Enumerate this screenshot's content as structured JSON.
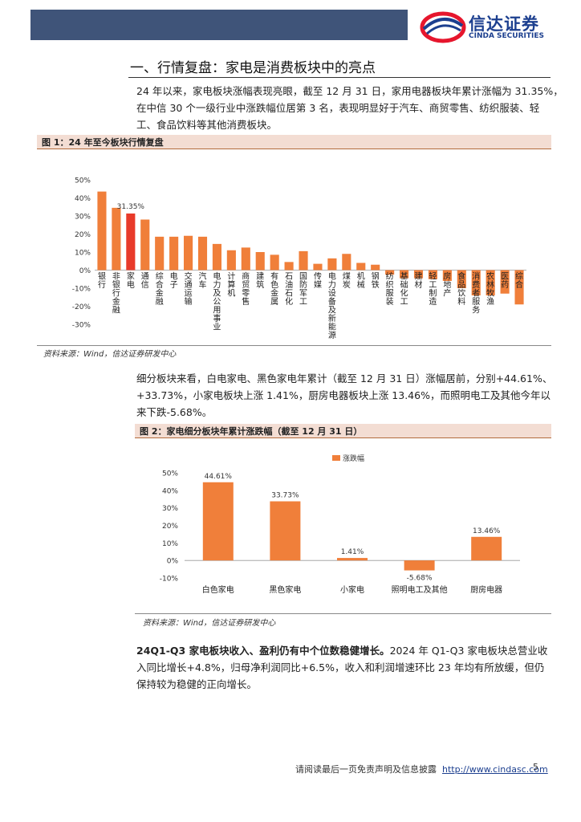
{
  "header": {
    "logo_cn": "信达证券",
    "logo_en": "CINDA SECURITIES"
  },
  "section": {
    "title": "一、行情复盘：家电是消费板块中的亮点"
  },
  "para1": [
    "24 年以来，家电板块涨幅表现亮眼，截至 12 月 31 日，家用电器板块年累计涨幅为 31.35%，",
    "在中信 30 个一级行业中涨跌幅位居第 3 名，表现明显好于汽车、商贸零售、纺织服装、轻",
    "工、食品饮料等其他消费板块。"
  ],
  "figure1": {
    "title": "图 1：24 年至今板块行情复盘",
    "source": "资料来源：Wind，信达证券研发中心"
  },
  "para2": [
    "细分板块来看，白电家电、黑色家电年累计（截至 12 月 31 日）涨幅居前，分别+44.61%、",
    "+33.73%，小家电板块上涨 1.41%，厨房电器板块上涨 13.46%，而照明电工及其他今年以",
    "来下跌-5.68%。"
  ],
  "figure2": {
    "title": "图 2：家电细分板块年累计涨跌幅（截至 12 月 31 日）",
    "source": "资料来源：Wind，信达证券研发中心"
  },
  "para3": {
    "lead": "24Q1-Q3 家电板块收入、盈利仍有中个位数稳健增长。",
    "lines": [
      "2024 年 Q1-Q3 家电板块总营业收",
      "入同比增长+4.8%，归母净利润同比+6.5%，收入和利润增速环比 23 年均有所放缓，但仍",
      "保持较为稳健的正向增长。"
    ]
  },
  "footer": {
    "text": "请阅读最后一页免责声明及信息披露",
    "link": "http://www.cindasc.com",
    "page": "5"
  },
  "colors": {
    "bar": "#f07f3a",
    "highlight": "#e83a2a",
    "header": "#3f5479",
    "fig_bar_bg": "#f3ddd3"
  },
  "chart_data": [
    {
      "type": "bar",
      "title": "",
      "categories": [
        "银行",
        "非银行金融",
        "家电",
        "通信",
        "综合金融",
        "电子",
        "交通运输",
        "汽车",
        "电力及公用事业",
        "计算机",
        "商贸零售",
        "建筑",
        "有色金属",
        "石油石化",
        "国防军工",
        "传媒",
        "电力设备及新能源",
        "煤炭",
        "机械",
        "钢铁",
        "纺织服装",
        "基础化工",
        "建材",
        "轻工制造",
        "房地产",
        "食品饮料",
        "消费者服务",
        "农林牧渔",
        "医药",
        "综合"
      ],
      "values": [
        43.5,
        34.5,
        31.35,
        28.0,
        18.5,
        18.5,
        19.0,
        18.5,
        14.5,
        11.0,
        12.5,
        10.0,
        8.5,
        4.5,
        10.5,
        3.5,
        6.5,
        9.0,
        4.0,
        3.0,
        -2.5,
        -4.5,
        -4.5,
        -5.0,
        -6.0,
        -10.0,
        -14.0,
        -14.0,
        -13.0,
        -19.0
      ],
      "highlight_index": 2,
      "data_labels": [
        {
          "index": 2,
          "text": "31.35%"
        }
      ],
      "yticks": [
        "50%",
        "40%",
        "30%",
        "20%",
        "10%",
        "0%",
        "-10%",
        "-20%",
        "-30%"
      ],
      "ylim": [
        -30,
        50
      ],
      "legend": "none"
    },
    {
      "type": "bar",
      "title": "",
      "categories": [
        "白色家电",
        "黑色家电",
        "小家电",
        "照明电工及其他",
        "厨房电器"
      ],
      "series": [
        {
          "name": "涨跌幅",
          "values": [
            44.61,
            33.73,
            1.41,
            -5.68,
            13.46
          ]
        }
      ],
      "data_labels": [
        "44.61%",
        "33.73%",
        "1.41%",
        "-5.68%",
        "13.46%"
      ],
      "yticks": [
        "50%",
        "40%",
        "30%",
        "20%",
        "10%",
        "0%",
        "-10%"
      ],
      "ylim": [
        -10,
        50
      ],
      "legend": "top"
    }
  ]
}
